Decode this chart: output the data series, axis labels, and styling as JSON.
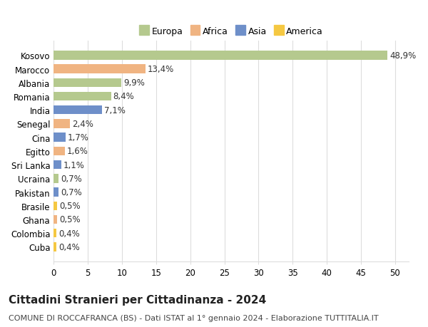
{
  "countries": [
    "Kosovo",
    "Marocco",
    "Albania",
    "Romania",
    "India",
    "Senegal",
    "Cina",
    "Egitto",
    "Sri Lanka",
    "Ucraina",
    "Pakistan",
    "Brasile",
    "Ghana",
    "Colombia",
    "Cuba"
  ],
  "values": [
    48.9,
    13.4,
    9.9,
    8.4,
    7.1,
    2.4,
    1.7,
    1.6,
    1.1,
    0.7,
    0.7,
    0.5,
    0.5,
    0.4,
    0.4
  ],
  "labels": [
    "48,9%",
    "13,4%",
    "9,9%",
    "8,4%",
    "7,1%",
    "2,4%",
    "1,7%",
    "1,6%",
    "1,1%",
    "0,7%",
    "0,7%",
    "0,5%",
    "0,5%",
    "0,4%",
    "0,4%"
  ],
  "continents": [
    "Europa",
    "Africa",
    "Europa",
    "Europa",
    "Asia",
    "Africa",
    "Asia",
    "Africa",
    "Asia",
    "Europa",
    "Asia",
    "America",
    "Africa",
    "America",
    "America"
  ],
  "colors": {
    "Europa": "#b5c98e",
    "Africa": "#f0b482",
    "Asia": "#6e8fc9",
    "America": "#f5c842"
  },
  "legend_order": [
    "Europa",
    "Africa",
    "Asia",
    "America"
  ],
  "legend_colors": [
    "#b5c98e",
    "#f0b482",
    "#6e8fc9",
    "#f5c842"
  ],
  "xlim": [
    0,
    52
  ],
  "xticks": [
    0,
    5,
    10,
    15,
    20,
    25,
    30,
    35,
    40,
    45,
    50
  ],
  "title": "Cittadini Stranieri per Cittadinanza - 2024",
  "subtitle": "COMUNE DI ROCCAFRANCA (BS) - Dati ISTAT al 1° gennaio 2024 - Elaborazione TUTTITALIA.IT",
  "bg_color": "#ffffff",
  "grid_color": "#dddddd",
  "bar_height": 0.65,
  "title_fontsize": 11,
  "subtitle_fontsize": 8,
  "tick_fontsize": 8.5,
  "label_fontsize": 8.5,
  "legend_fontsize": 9
}
